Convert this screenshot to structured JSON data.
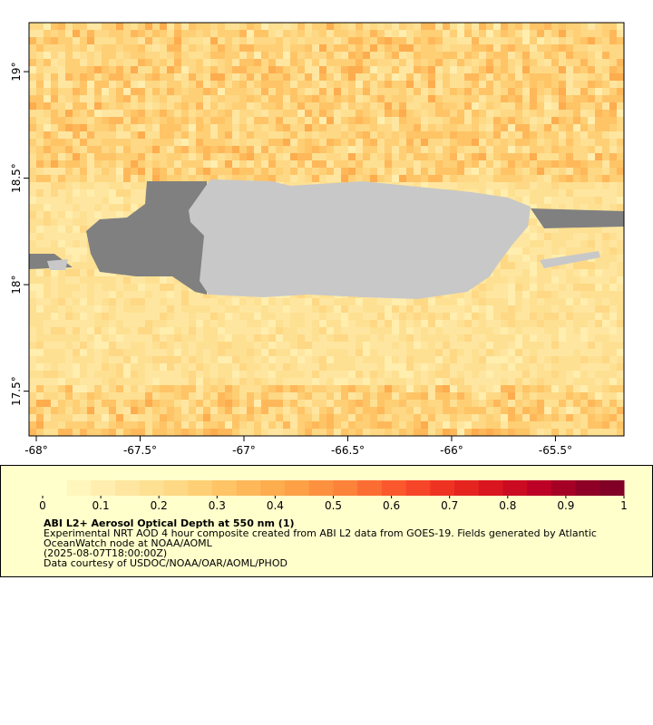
{
  "map": {
    "xlim": [
      -68.035,
      -65.17
    ],
    "ylim": [
      17.29,
      19.23
    ],
    "lon_ticks": [
      {
        "value": -68,
        "label": "-68°"
      },
      {
        "value": -67.5,
        "label": "-67.5°"
      },
      {
        "value": -67,
        "label": "-67°"
      },
      {
        "value": -66.5,
        "label": "-66.5°"
      },
      {
        "value": -66,
        "label": "-66°"
      },
      {
        "value": -65.5,
        "label": "-65.5°"
      }
    ],
    "lat_ticks": [
      {
        "value": 17.5,
        "label": "17.5°"
      },
      {
        "value": 18,
        "label": "18°"
      },
      {
        "value": 18.5,
        "label": "18.5°"
      },
      {
        "value": 19,
        "label": "19°"
      }
    ]
  },
  "colorbar": {
    "range": [
      0,
      1
    ],
    "ticks": [
      0,
      0.1,
      0.2,
      0.3,
      0.4,
      0.5,
      0.6,
      0.7,
      0.8,
      0.9,
      1
    ],
    "colors": [
      "#ffffcc",
      "#fff6bd",
      "#ffeeae",
      "#ffe6a0",
      "#fee092",
      "#fed884",
      "#fecf74",
      "#fec466",
      "#feb85a",
      "#fdac4e",
      "#fda046",
      "#fd9140",
      "#fd823a",
      "#fc6d33",
      "#fb582d",
      "#f64528",
      "#ef3323",
      "#e52420",
      "#d9151f",
      "#cb0b21",
      "#bd0026",
      "#a50026",
      "#8f0026",
      "#800026"
    ]
  },
  "caption": {
    "title": "ABI L2+ Aerosol Optical Depth at 550 nm (1)",
    "lines": [
      "Experimental NRT AOD 4 hour composite created from ABI L2 data from GOES-19. Fields generated by Atlantic",
      "OceanWatch node at NOAA/AOML",
      "(2025-08-07T18:00:00Z)",
      "Data courtesy of USDOC/NOAA/OAR/AOML/PHOD"
    ]
  }
}
